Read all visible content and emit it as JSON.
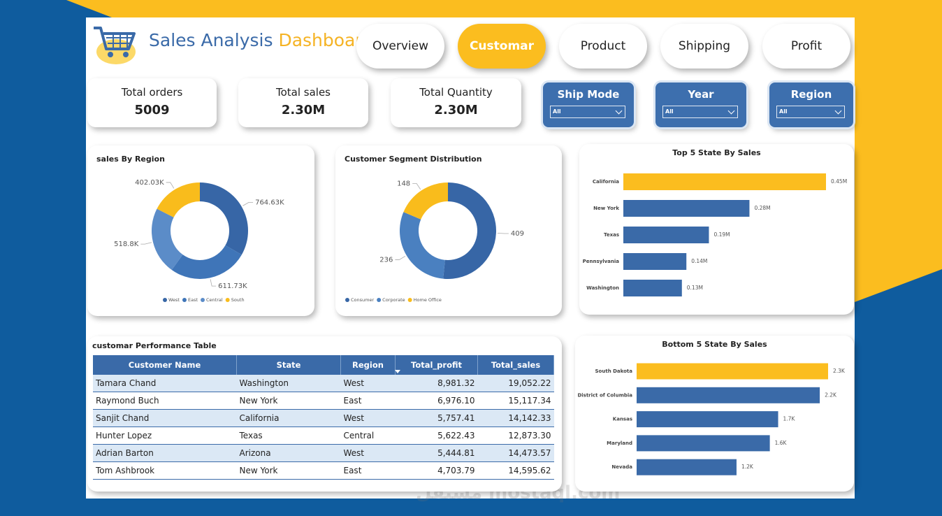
{
  "header": {
    "title": "Sales Analysis",
    "title_accent": "Dashboard"
  },
  "tabs": [
    "Overview",
    "Customar",
    "Product",
    "Shipping",
    "Profit"
  ],
  "active_tab": 1,
  "kpis": [
    {
      "label": "Total orders",
      "value": "5009"
    },
    {
      "label": "Total sales",
      "value": "2.30M"
    },
    {
      "label": "Total Quantity",
      "value": "2.30M"
    }
  ],
  "slicers": [
    {
      "title": "Ship Mode",
      "selection": "All"
    },
    {
      "title": "Year",
      "selection": "All"
    },
    {
      "title": "Region",
      "selection": "All"
    }
  ],
  "chart_data": [
    {
      "type": "donut",
      "title": "sales By Region",
      "categories": [
        "West",
        "East",
        "Central",
        "South"
      ],
      "values": [
        764.63,
        611.73,
        518.8,
        402.03
      ],
      "value_labels": [
        "764.63K",
        "611.73K",
        "518.8K",
        "402.03K"
      ],
      "colors": [
        "#3766a6",
        "#3f75b8",
        "#5b8cc8",
        "#f9bc1c"
      ]
    },
    {
      "type": "donut",
      "title": "Customer Segment Distribution",
      "categories": [
        "Consumer",
        "Corporate",
        "Home Office"
      ],
      "values": [
        409,
        236,
        148
      ],
      "colors": [
        "#3766a6",
        "#4a80c0",
        "#f9bc1c"
      ]
    },
    {
      "type": "bar",
      "orientation": "horizontal",
      "title": "Top 5 State By Sales",
      "categories": [
        "California",
        "New York",
        "Texas",
        "Pennsylvania",
        "Washington"
      ],
      "values": [
        0.45,
        0.28,
        0.19,
        0.14,
        0.13
      ],
      "value_labels": [
        "0.45M",
        "0.28M",
        "0.19M",
        "0.14M",
        "0.13M"
      ],
      "colors": [
        "#fbbd1f",
        "#3a6aa8",
        "#3a6aa8",
        "#3a6aa8",
        "#3a6aa8"
      ]
    },
    {
      "type": "bar",
      "orientation": "horizontal",
      "title": "Bottom 5 State By Sales",
      "categories": [
        "South Dakota",
        "District of Columbia",
        "Kansas",
        "Maryland",
        "Nevada"
      ],
      "values": [
        2.3,
        2.2,
        1.7,
        1.6,
        1.2
      ],
      "value_labels": [
        "2.3K",
        "2.2K",
        "1.7K",
        "1.6K",
        "1.2K"
      ],
      "colors": [
        "#fbbd1f",
        "#3a6aa8",
        "#3a6aa8",
        "#3a6aa8",
        "#3a6aa8"
      ]
    }
  ],
  "table": {
    "title": "customar Performance Table",
    "columns": [
      "Customer Name",
      "State",
      "Region",
      "Total_profit",
      "Total_sales"
    ],
    "rows": [
      [
        "Tamara Chand",
        "Washington",
        "West",
        "8,981.32",
        "19,052.22"
      ],
      [
        "Raymond Buch",
        "New York",
        "East",
        "6,976.10",
        "15,117.34"
      ],
      [
        "Sanjit Chand",
        "California",
        "West",
        "5,757.41",
        "14,142.33"
      ],
      [
        "Hunter Lopez",
        "Texas",
        "Central",
        "5,622.43",
        "12,873.30"
      ],
      [
        "Adrian Barton",
        "Arizona",
        "West",
        "5,444.81",
        "14,473.57"
      ],
      [
        "Tom Ashbrook",
        "New York",
        "East",
        "4,703.79",
        "14,595.62"
      ]
    ]
  },
  "watermark": {
    "arabic": "مستقل",
    "latin": "mostaql.com"
  }
}
